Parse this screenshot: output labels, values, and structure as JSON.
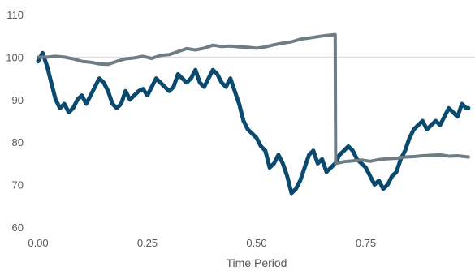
{
  "chart_data": {
    "type": "line",
    "title": "",
    "xlabel": "Time Period",
    "ylabel": "",
    "xlim": [
      0,
      1
    ],
    "ylim": [
      60,
      110
    ],
    "x_ticks": [
      "0.00",
      "0.25",
      "0.50",
      "0.75"
    ],
    "x_tick_values": [
      0,
      0.25,
      0.5,
      0.75
    ],
    "y_ticks": [
      "60",
      "70",
      "80",
      "90",
      "100",
      "110"
    ],
    "y_tick_values": [
      60,
      70,
      80,
      90,
      100,
      110
    ],
    "grid": "horizontal reference line at 100",
    "legend": "none",
    "series": [
      {
        "color": "#0b4a6f",
        "points": [
          [
            0.0,
            99
          ],
          [
            0.01,
            101
          ],
          [
            0.02,
            98
          ],
          [
            0.03,
            94
          ],
          [
            0.04,
            90
          ],
          [
            0.05,
            88
          ],
          [
            0.06,
            89
          ],
          [
            0.07,
            87
          ],
          [
            0.08,
            88
          ],
          [
            0.09,
            90
          ],
          [
            0.1,
            91
          ],
          [
            0.11,
            89
          ],
          [
            0.12,
            91
          ],
          [
            0.13,
            93
          ],
          [
            0.14,
            95
          ],
          [
            0.15,
            94
          ],
          [
            0.16,
            92
          ],
          [
            0.17,
            89
          ],
          [
            0.18,
            88
          ],
          [
            0.19,
            89
          ],
          [
            0.2,
            92
          ],
          [
            0.21,
            90
          ],
          [
            0.22,
            91
          ],
          [
            0.23,
            92
          ],
          [
            0.24,
            92.5
          ],
          [
            0.25,
            91
          ],
          [
            0.26,
            93
          ],
          [
            0.27,
            95
          ],
          [
            0.28,
            94
          ],
          [
            0.29,
            93
          ],
          [
            0.3,
            92
          ],
          [
            0.31,
            93
          ],
          [
            0.32,
            96
          ],
          [
            0.33,
            95
          ],
          [
            0.34,
            94
          ],
          [
            0.35,
            95
          ],
          [
            0.36,
            97
          ],
          [
            0.37,
            94
          ],
          [
            0.38,
            93
          ],
          [
            0.39,
            95
          ],
          [
            0.4,
            97
          ],
          [
            0.41,
            96
          ],
          [
            0.42,
            94
          ],
          [
            0.43,
            93
          ],
          [
            0.44,
            95
          ],
          [
            0.45,
            92
          ],
          [
            0.46,
            89
          ],
          [
            0.47,
            85
          ],
          [
            0.48,
            83
          ],
          [
            0.49,
            82
          ],
          [
            0.5,
            81
          ],
          [
            0.51,
            79
          ],
          [
            0.52,
            78
          ],
          [
            0.53,
            74
          ],
          [
            0.54,
            75
          ],
          [
            0.55,
            77
          ],
          [
            0.56,
            75
          ],
          [
            0.57,
            72
          ],
          [
            0.58,
            68
          ],
          [
            0.59,
            69
          ],
          [
            0.6,
            71
          ],
          [
            0.61,
            74
          ],
          [
            0.62,
            77
          ],
          [
            0.63,
            78
          ],
          [
            0.64,
            75
          ],
          [
            0.65,
            76
          ],
          [
            0.66,
            73
          ],
          [
            0.67,
            74
          ],
          [
            0.68,
            75
          ],
          [
            0.69,
            77
          ],
          [
            0.7,
            78
          ],
          [
            0.71,
            79
          ],
          [
            0.72,
            78
          ],
          [
            0.73,
            76
          ],
          [
            0.74,
            75
          ],
          [
            0.75,
            74
          ],
          [
            0.76,
            72
          ],
          [
            0.77,
            70
          ],
          [
            0.78,
            71
          ],
          [
            0.79,
            69
          ],
          [
            0.8,
            70
          ],
          [
            0.81,
            72
          ],
          [
            0.82,
            73
          ],
          [
            0.83,
            76
          ],
          [
            0.84,
            78
          ],
          [
            0.85,
            81
          ],
          [
            0.86,
            83
          ],
          [
            0.87,
            84
          ],
          [
            0.88,
            85
          ],
          [
            0.89,
            83
          ],
          [
            0.9,
            84
          ],
          [
            0.91,
            85
          ],
          [
            0.92,
            84
          ],
          [
            0.93,
            86
          ],
          [
            0.94,
            88
          ],
          [
            0.95,
            87
          ],
          [
            0.96,
            86
          ],
          [
            0.97,
            89
          ],
          [
            0.98,
            88
          ],
          [
            0.985,
            88
          ]
        ]
      },
      {
        "color": "#6d7d83",
        "points": [
          [
            0.0,
            100
          ],
          [
            0.02,
            100
          ],
          [
            0.04,
            100.2
          ],
          [
            0.06,
            100
          ],
          [
            0.08,
            99.6
          ],
          [
            0.1,
            99
          ],
          [
            0.12,
            98.8
          ],
          [
            0.14,
            98.4
          ],
          [
            0.16,
            98.3
          ],
          [
            0.18,
            99
          ],
          [
            0.2,
            99.6
          ],
          [
            0.22,
            99.8
          ],
          [
            0.24,
            100.2
          ],
          [
            0.26,
            99.7
          ],
          [
            0.28,
            100.4
          ],
          [
            0.3,
            100.6
          ],
          [
            0.32,
            101.3
          ],
          [
            0.34,
            102
          ],
          [
            0.36,
            101.7
          ],
          [
            0.38,
            102.1
          ],
          [
            0.4,
            102.8
          ],
          [
            0.42,
            102.5
          ],
          [
            0.44,
            102.6
          ],
          [
            0.46,
            102.4
          ],
          [
            0.48,
            102.3
          ],
          [
            0.5,
            102.1
          ],
          [
            0.52,
            102.4
          ],
          [
            0.54,
            102.9
          ],
          [
            0.56,
            103.3
          ],
          [
            0.58,
            103.6
          ],
          [
            0.6,
            104.2
          ],
          [
            0.62,
            104.5
          ],
          [
            0.64,
            104.8
          ],
          [
            0.66,
            105.1
          ],
          [
            0.68,
            105.3
          ],
          [
            0.681,
            75
          ],
          [
            0.7,
            75.4
          ],
          [
            0.72,
            75.6
          ],
          [
            0.74,
            75.8
          ],
          [
            0.76,
            75.5
          ],
          [
            0.78,
            75.9
          ],
          [
            0.8,
            76.1
          ],
          [
            0.82,
            76.2
          ],
          [
            0.84,
            76.5
          ],
          [
            0.86,
            76.6
          ],
          [
            0.88,
            76.8
          ],
          [
            0.9,
            76.9
          ],
          [
            0.92,
            77
          ],
          [
            0.94,
            76.7
          ],
          [
            0.96,
            76.8
          ],
          [
            0.985,
            76.5
          ]
        ]
      }
    ]
  }
}
